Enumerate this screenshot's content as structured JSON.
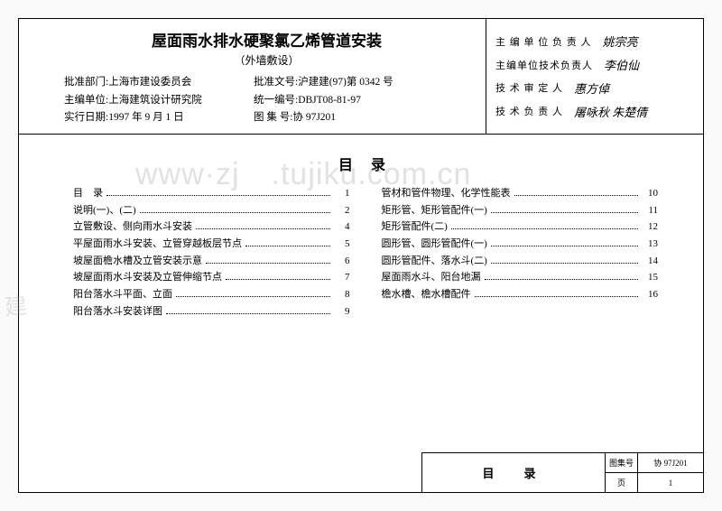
{
  "header": {
    "title": "屋面雨水排水硬聚氯乙烯管道安装",
    "subtitle": "（外墙敷设）",
    "approval_dept_label": "批准部门:",
    "approval_dept": "上海市建设委员会",
    "approval_doc_label": "批准文号:",
    "approval_doc": "沪建建(97)第 0342 号",
    "editor_unit_label": "主编单位:",
    "editor_unit": "上海建筑设计研究院",
    "unified_no_label": "统一编号:",
    "unified_no": "DBJT08-81-97",
    "effective_date_label": "实行日期:",
    "effective_date": "1997 年 9 月 1 日",
    "atlas_no_label": "图 集 号:",
    "atlas_no": "协 97J201"
  },
  "signatures": [
    {
      "label": "主 编 单 位 负 责 人",
      "value": "姚宗亮"
    },
    {
      "label": "主编单位技术负责人",
      "value": "李伯仙"
    },
    {
      "label": "技 术 审 定 人",
      "value": "惠方倬"
    },
    {
      "label": "技 术 负 责 人",
      "value": "屠咏秋 朱楚倩"
    }
  ],
  "catalog": {
    "title": "目 录",
    "left": [
      {
        "label": "目　录",
        "page": "1"
      },
      {
        "label": "说明(一)、(二)",
        "page": "2"
      },
      {
        "label": "立管敷设、侧向雨水斗安装",
        "page": "4"
      },
      {
        "label": "平屋面雨水斗安装、立管穿越板层节点",
        "page": "5"
      },
      {
        "label": "坡屋面檐水槽及立管安装示意",
        "page": "6"
      },
      {
        "label": "坡屋面雨水斗安装及立管伸缩节点",
        "page": "7"
      },
      {
        "label": "阳台落水斗平面、立面",
        "page": "8"
      },
      {
        "label": "阳台落水斗安装详图",
        "page": "9"
      }
    ],
    "right": [
      {
        "label": "管材和管件物理、化学性能表",
        "page": "10"
      },
      {
        "label": "矩形管、矩形管配件(一)",
        "page": "11"
      },
      {
        "label": "矩形管配件(二)",
        "page": "12"
      },
      {
        "label": "圆形管、圆形管配件(一)",
        "page": "13"
      },
      {
        "label": "圆形管配件、落水斗(二)",
        "page": "14"
      },
      {
        "label": "屋面雨水斗、阳台地漏",
        "page": "15"
      },
      {
        "label": "檐水槽、檐水槽配件",
        "page": "16"
      }
    ]
  },
  "footer": {
    "name": "目　录",
    "atlas_label": "图集号",
    "atlas_val": "协 97J201",
    "page_label": "页",
    "page_val": "1"
  },
  "watermark": "www·zj　.tujiku.com.cn",
  "watermark2": "建"
}
